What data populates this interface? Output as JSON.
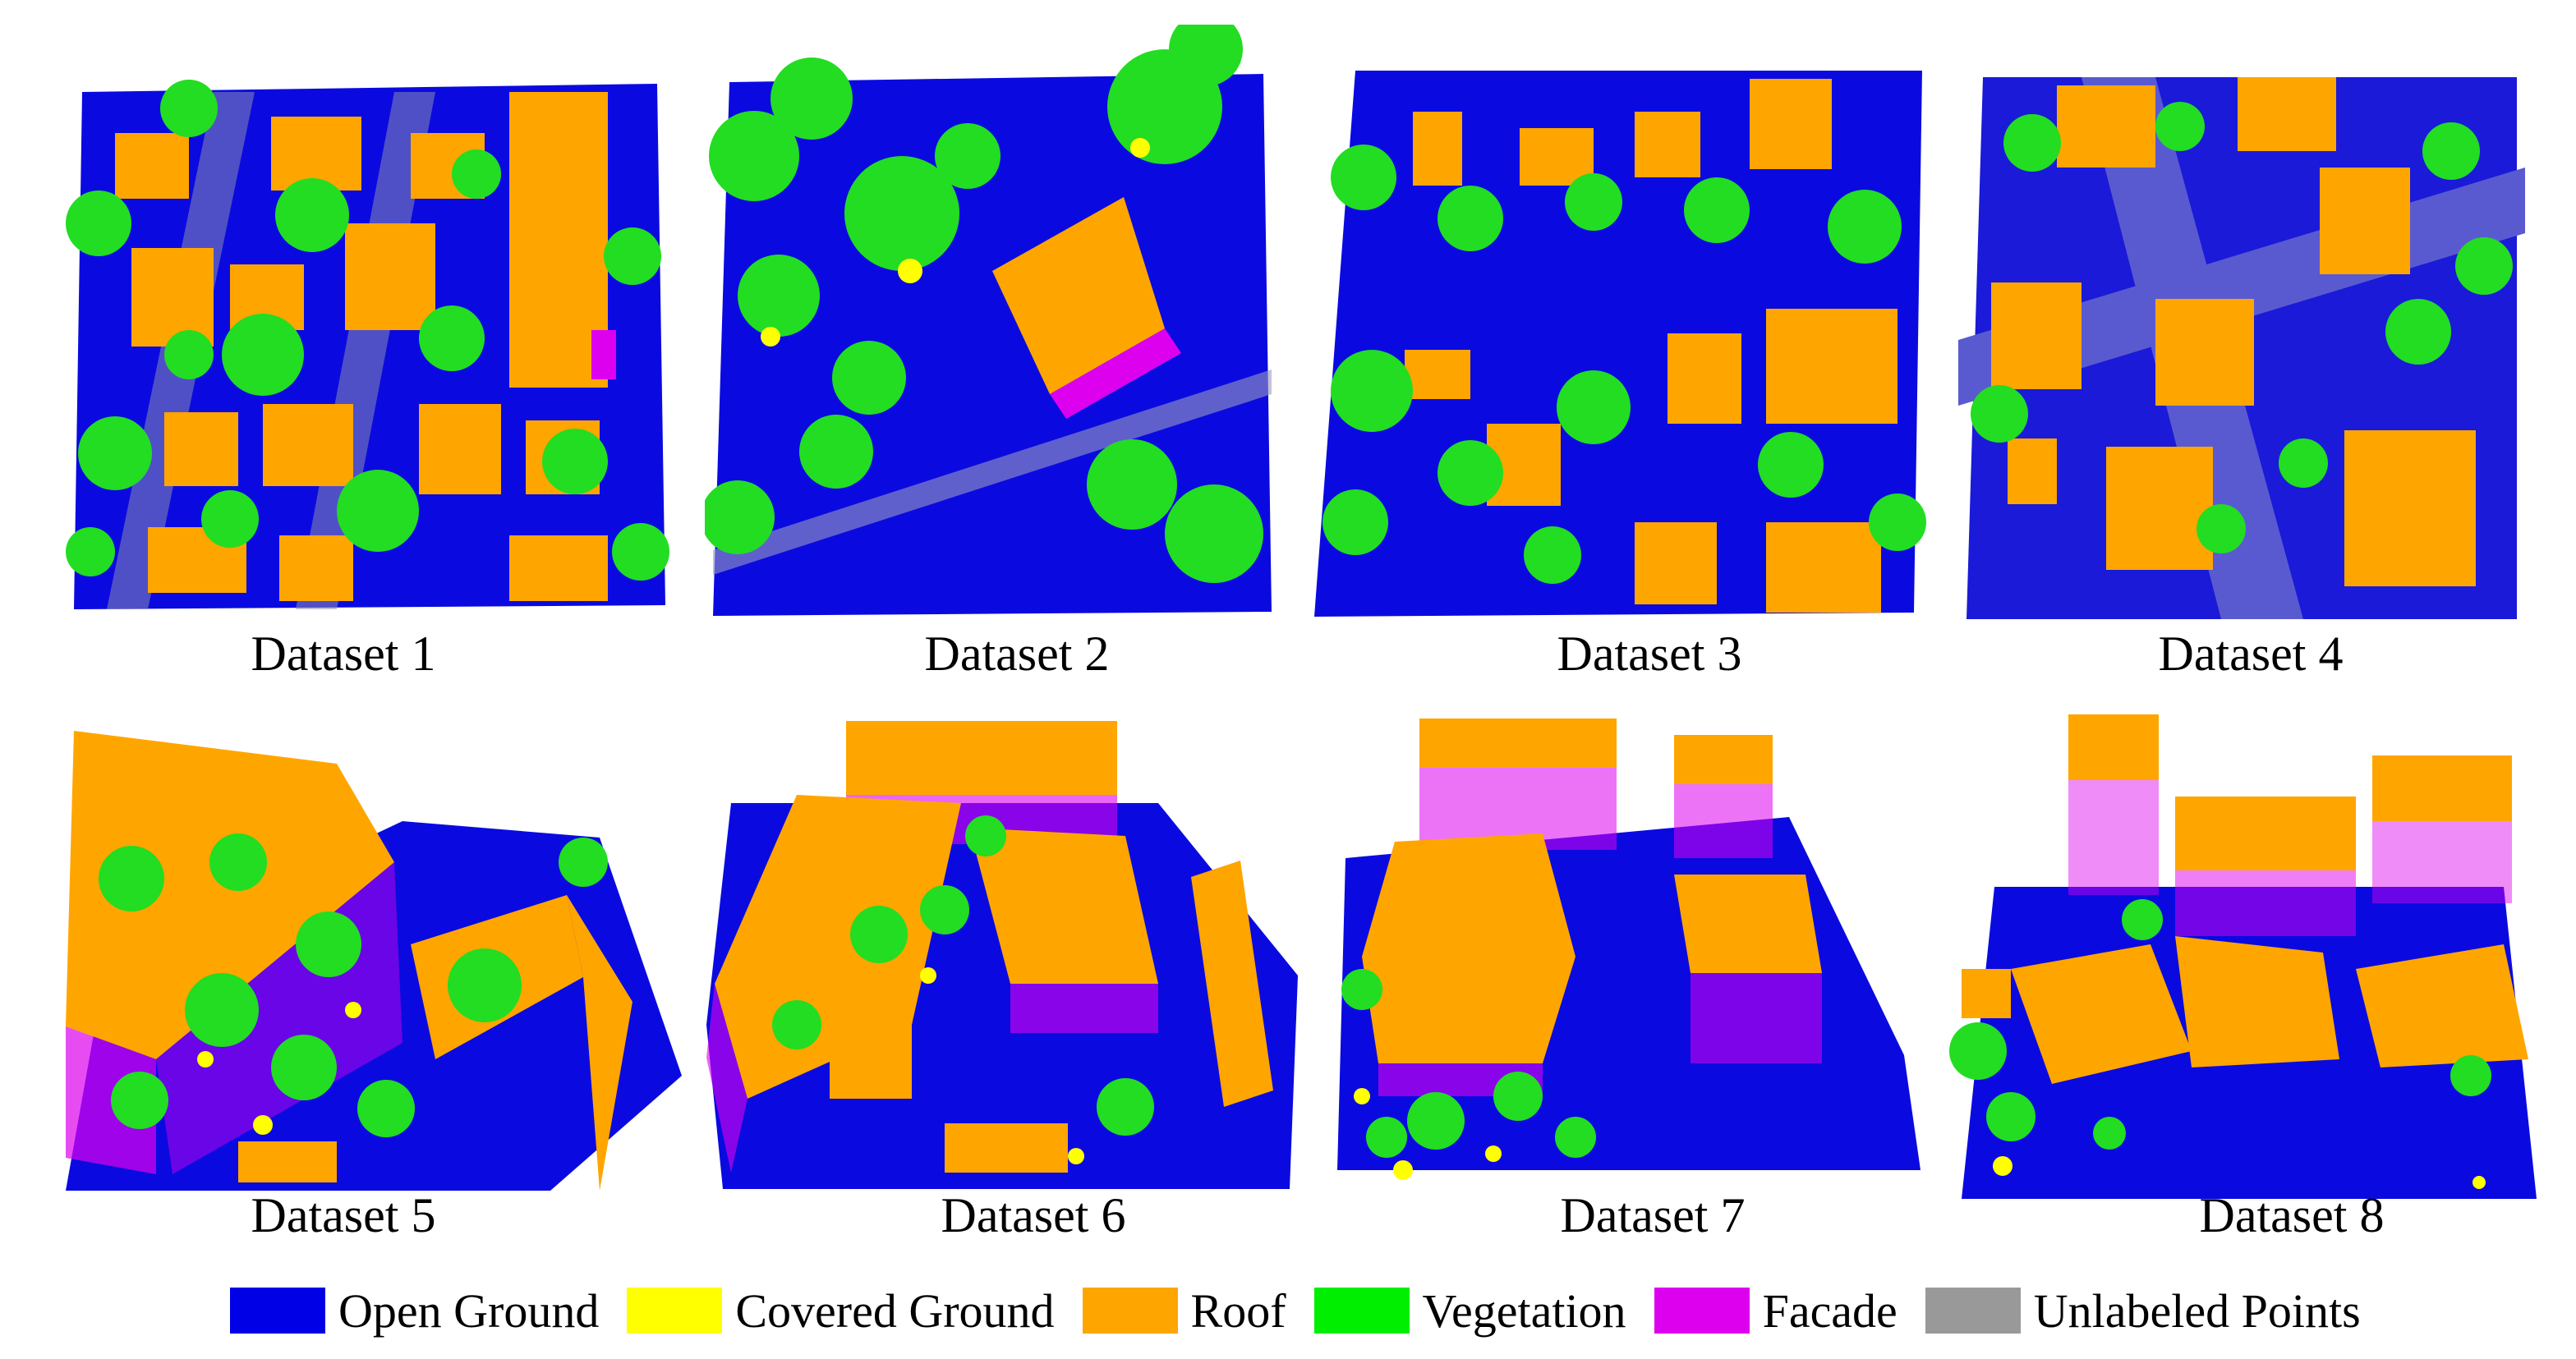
{
  "figure": {
    "datasets": [
      {
        "caption": "Dataset 1",
        "view": "top-down"
      },
      {
        "caption": "Dataset 2",
        "view": "top-down"
      },
      {
        "caption": "Dataset 3",
        "view": "top-down"
      },
      {
        "caption": "Dataset 4",
        "view": "top-down"
      },
      {
        "caption": "Dataset 5",
        "view": "oblique"
      },
      {
        "caption": "Dataset 6",
        "view": "oblique"
      },
      {
        "caption": "Dataset 7",
        "view": "oblique"
      },
      {
        "caption": "Dataset 8",
        "view": "oblique"
      }
    ],
    "legend": [
      {
        "label": "Open Ground",
        "color": "#0000e6"
      },
      {
        "label": "Covered Ground",
        "color": "#ffff00"
      },
      {
        "label": "Roof",
        "color": "#ffa500"
      },
      {
        "label": "Vegetation",
        "color": "#00ee00"
      },
      {
        "label": "Facade",
        "color": "#dd00ee"
      },
      {
        "label": "Unlabeled Points",
        "color": "#999999"
      }
    ]
  }
}
